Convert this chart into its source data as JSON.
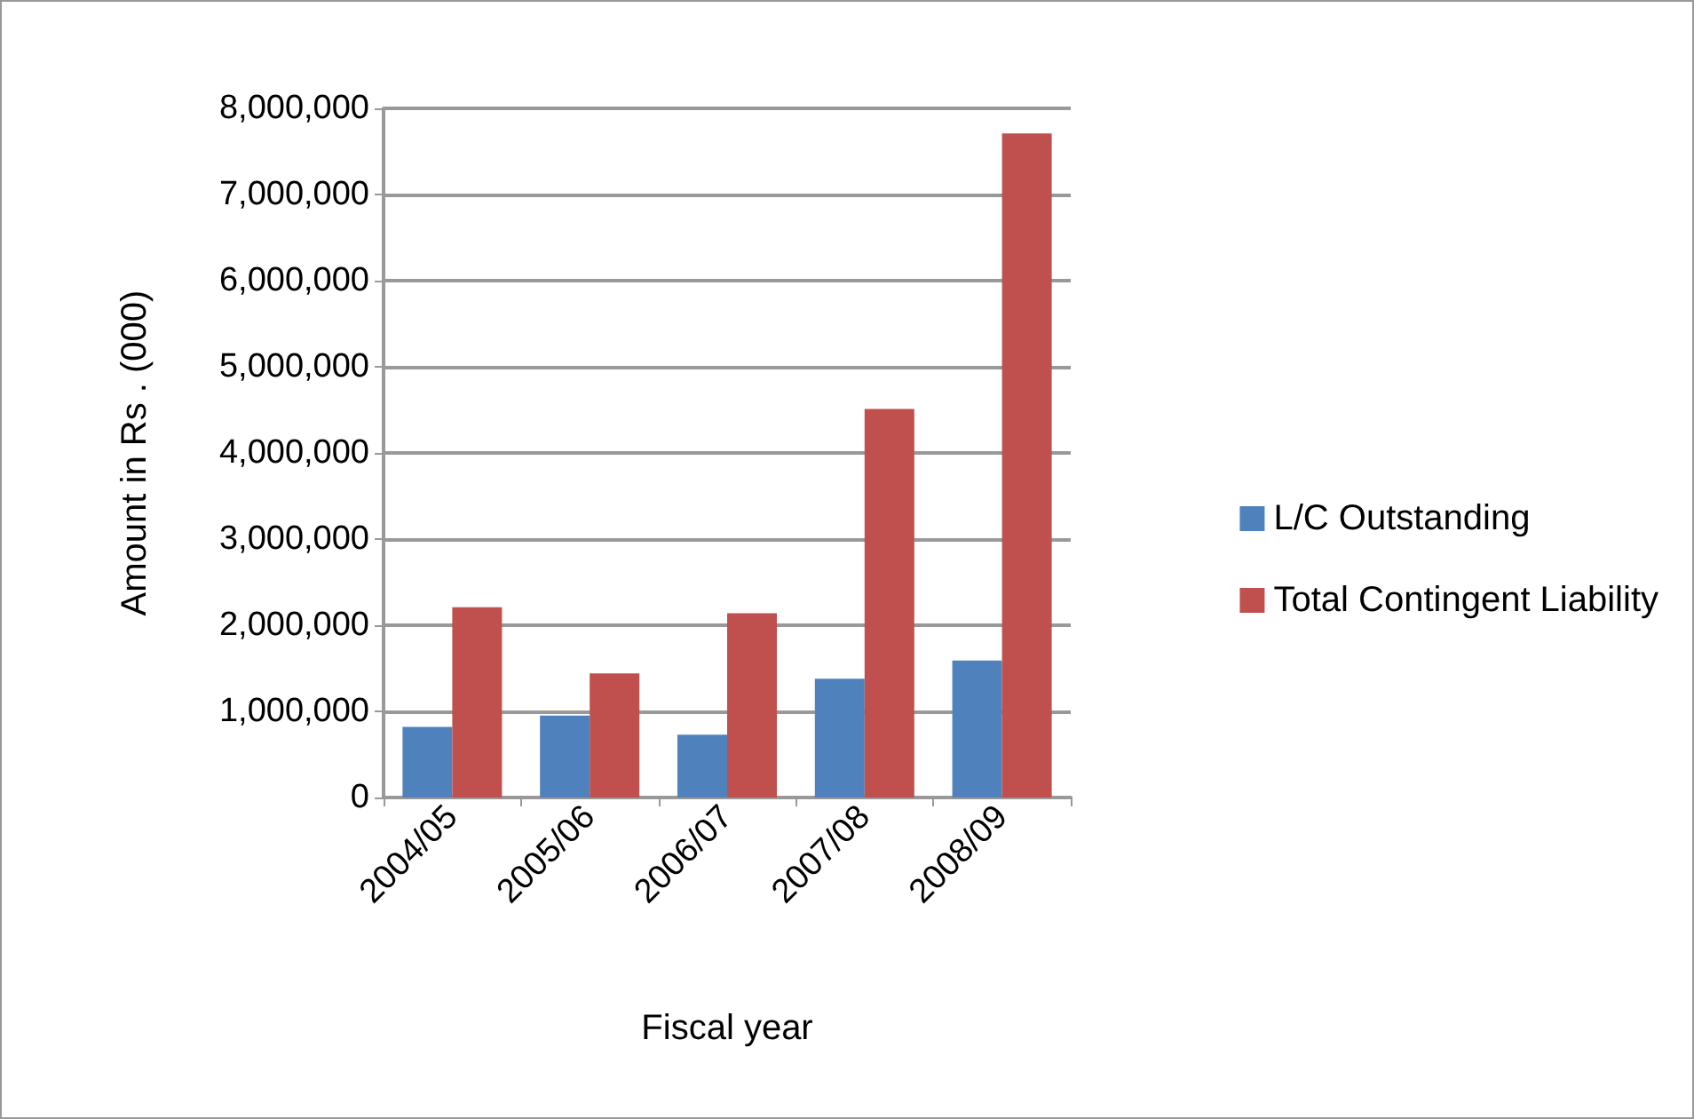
{
  "chart_data": {
    "type": "bar",
    "xlabel": "Fiscal year",
    "ylabel": "Amount in Rs . (000)",
    "categories": [
      "2004/05",
      "2005/06",
      "2006/07",
      "2007/08",
      "2008/09"
    ],
    "series": [
      {
        "name": "L/C Outstanding",
        "color": "#4f81bd",
        "values": [
          820000,
          950000,
          730000,
          1380000,
          1590000
        ]
      },
      {
        "name": "Total Contingent Liability",
        "color": "#c0504d",
        "values": [
          2210000,
          1440000,
          2140000,
          4510000,
          7710000
        ]
      }
    ],
    "ylim": [
      0,
      8000000
    ],
    "yticks": [
      0,
      {
        "value": 1000000,
        "label": "1,000,000"
      },
      {
        "value": 2000000,
        "label": "2,000,000"
      },
      {
        "value": 3000000,
        "label": "3,000,000"
      },
      {
        "value": 4000000,
        "label": "4,000,000"
      },
      {
        "value": 5000000,
        "label": "5,000,000"
      },
      {
        "value": 6000000,
        "label": "6,000,000"
      },
      {
        "value": 7000000,
        "label": "7,000,000"
      },
      {
        "value": 8000000,
        "label": "8,000,000"
      }
    ],
    "grid": "y",
    "legend": "right"
  }
}
